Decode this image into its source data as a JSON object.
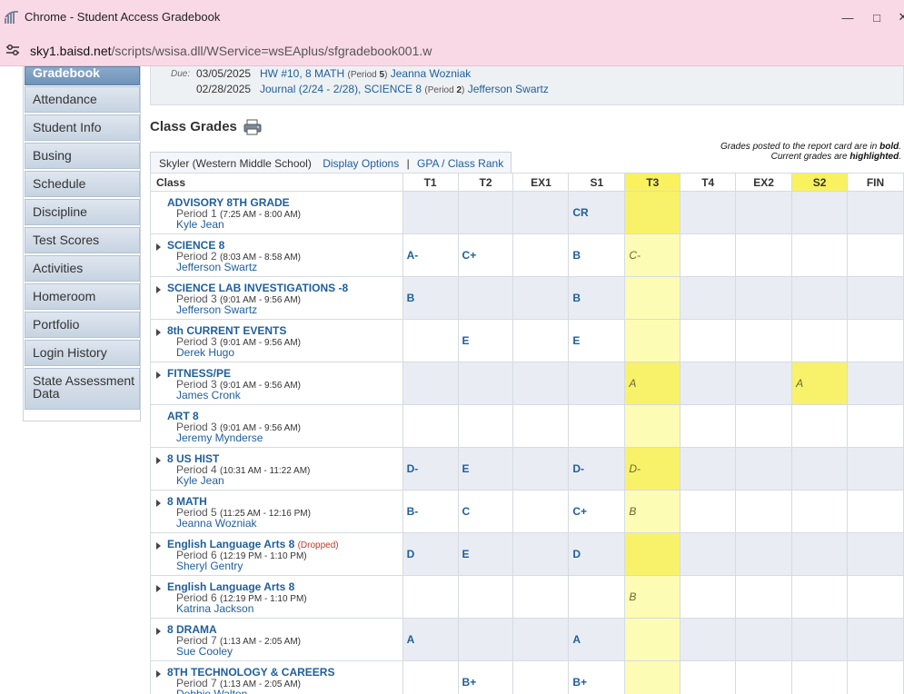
{
  "window": {
    "title": "Chrome - Student Access Gradebook",
    "minimize_glyph": "—",
    "maximize_glyph": "□",
    "close_glyph": "✕"
  },
  "address": {
    "host": "sky1.baisd.net",
    "path": "/scripts/wsisa.dll/WService=wsEAplus/sfgradebook001.w"
  },
  "sidebar": {
    "active": "Gradebook",
    "items": [
      "Attendance",
      "Student Info",
      "Busing",
      "Schedule",
      "Discipline",
      "Test Scores",
      "Activities",
      "Homeroom",
      "Portfolio",
      "Login History",
      "State Assessment Data"
    ]
  },
  "due": {
    "label": "Due:",
    "items": [
      {
        "date": "03/05/2025",
        "assignment": "HW #10, 8 MATH",
        "period_prefix": "(Period ",
        "period": "5",
        "period_suffix": ")",
        "teacher": "Jeanna Wozniak"
      },
      {
        "date": "02/28/2025",
        "assignment": "Journal (2/24 - 2/28), SCIENCE 8",
        "period_prefix": "(Period ",
        "period": "2",
        "period_suffix": ")",
        "teacher": "Jefferson Swartz"
      }
    ]
  },
  "class_grades": {
    "title": "Class Grades",
    "legend": {
      "line1_pre": "Grades posted to the report card are in ",
      "line1_em": "bold",
      "line1_post": ".",
      "line2_pre": "Current grades are ",
      "line2_em": "highlighted",
      "line2_post": "."
    },
    "student": "Skyler (Western Middle School)",
    "display_options": "Display Options",
    "separator": "|",
    "gpa_link": "GPA / Class Rank",
    "columns": [
      "Class",
      "T1",
      "T2",
      "EX1",
      "S1",
      "T3",
      "T4",
      "EX2",
      "S2",
      "FIN"
    ],
    "rows": [
      {
        "name": "ADVISORY 8TH GRADE",
        "expand": false,
        "dropped": "",
        "period_label": "Period 1",
        "time": "(7:25 AM - 8:00 AM)",
        "teacher": "Kyle Jean",
        "grades": [
          "",
          "",
          "",
          "CR",
          "",
          "",
          "",
          "",
          ""
        ]
      },
      {
        "name": "SCIENCE 8",
        "expand": true,
        "dropped": "",
        "period_label": "Period 2",
        "time": "(8:03 AM - 8:58 AM)",
        "teacher": "Jefferson Swartz",
        "grades": [
          "A-",
          "C+",
          "",
          "B",
          "C-",
          "",
          "",
          "",
          ""
        ]
      },
      {
        "name": "SCIENCE LAB INVESTIGATIONS -8",
        "expand": true,
        "dropped": "",
        "period_label": "Period 3",
        "time": "(9:01 AM - 9:56 AM)",
        "teacher": "Jefferson Swartz",
        "grades": [
          "B",
          "",
          "",
          "B",
          "",
          "",
          "",
          "",
          ""
        ]
      },
      {
        "name": "8th CURRENT EVENTS",
        "expand": true,
        "dropped": "",
        "period_label": "Period 3",
        "time": "(9:01 AM - 9:56 AM)",
        "teacher": "Derek Hugo",
        "grades": [
          "",
          "E",
          "",
          "E",
          "",
          "",
          "",
          "",
          ""
        ]
      },
      {
        "name": "FITNESS/PE",
        "expand": true,
        "dropped": "",
        "period_label": "Period 3",
        "time": "(9:01 AM - 9:56 AM)",
        "teacher": "James Cronk",
        "grades": [
          "",
          "",
          "",
          "",
          "A",
          "",
          "",
          "A",
          ""
        ]
      },
      {
        "name": "ART 8",
        "expand": false,
        "dropped": "",
        "period_label": "Period 3",
        "time": "(9:01 AM - 9:56 AM)",
        "teacher": "Jeremy Mynderse",
        "grades": [
          "",
          "",
          "",
          "",
          "",
          "",
          "",
          "",
          ""
        ]
      },
      {
        "name": "8 US HIST",
        "expand": true,
        "dropped": "",
        "period_label": "Period 4",
        "time": "(10:31 AM - 11:22 AM)",
        "teacher": "Kyle Jean",
        "grades": [
          "D-",
          "E",
          "",
          "D-",
          "D-",
          "",
          "",
          "",
          ""
        ]
      },
      {
        "name": "8 MATH",
        "expand": true,
        "dropped": "",
        "period_label": "Period 5",
        "time": "(11:25 AM - 12:16 PM)",
        "teacher": "Jeanna Wozniak",
        "grades": [
          "B-",
          "C",
          "",
          "C+",
          "B",
          "",
          "",
          "",
          ""
        ]
      },
      {
        "name": "English Language Arts 8",
        "expand": true,
        "dropped": "(Dropped)",
        "period_label": "Period 6",
        "time": "(12:19 PM - 1:10 PM)",
        "teacher": "Sheryl Gentry",
        "grades": [
          "D",
          "E",
          "",
          "D",
          "",
          "",
          "",
          "",
          ""
        ]
      },
      {
        "name": "English Language Arts 8",
        "expand": true,
        "dropped": "",
        "period_label": "Period 6",
        "time": "(12:19 PM - 1:10 PM)",
        "teacher": "Katrina Jackson",
        "grades": [
          "",
          "",
          "",
          "",
          "B",
          "",
          "",
          "",
          ""
        ]
      },
      {
        "name": "8 DRAMA",
        "expand": true,
        "dropped": "",
        "period_label": "Period 7",
        "time": "(1:13 AM - 2:05 AM)",
        "teacher": "Sue Cooley",
        "grades": [
          "A",
          "",
          "",
          "A",
          "",
          "",
          "",
          "",
          ""
        ]
      },
      {
        "name": "8TH TECHNOLOGY & CAREERS",
        "expand": true,
        "dropped": "",
        "period_label": "Period 7",
        "time": "(1:13 AM - 2:05 AM)",
        "teacher": "Debbie Walton",
        "grades": [
          "",
          "B+",
          "",
          "B+",
          "",
          "",
          "",
          "",
          ""
        ]
      }
    ]
  }
}
